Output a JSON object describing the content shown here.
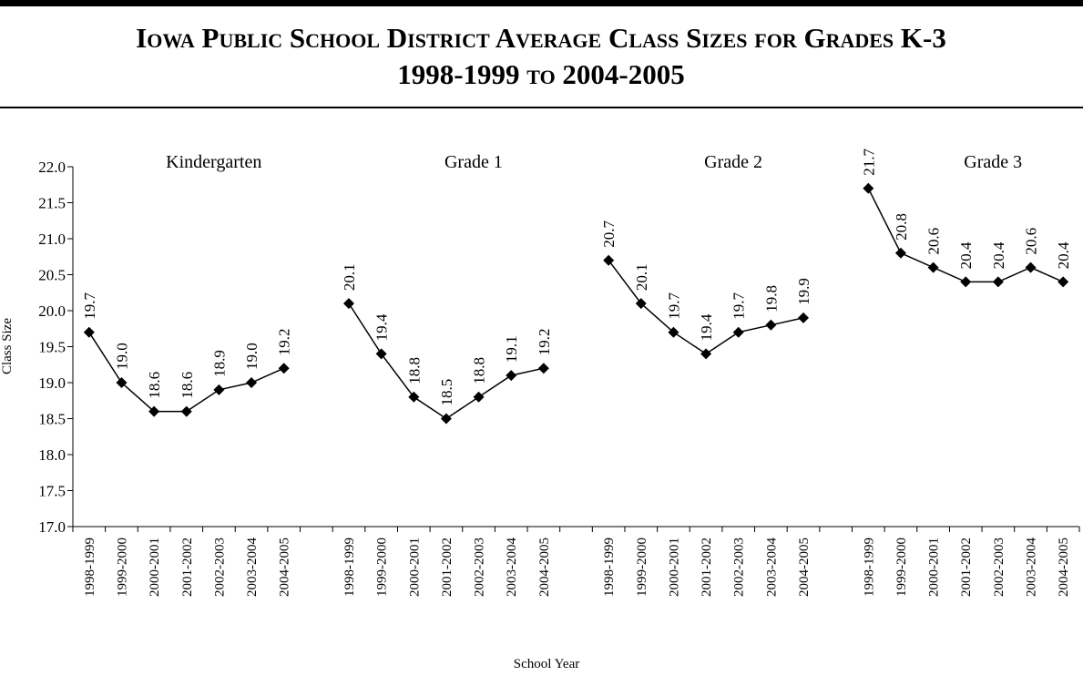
{
  "chart_data": {
    "type": "line",
    "title": "Iowa Public School District Average Class Sizes for Grades K-3",
    "subtitle": "1998-1999 to 2004-2005",
    "x_label": "School Year",
    "y_label": "Class Size",
    "categories": [
      "1998-1999",
      "1999-2000",
      "2000-2001",
      "2001-2002",
      "2002-2003",
      "2003-2004",
      "2004-2005",
      null,
      "1998-1999",
      "1999-2000",
      "2000-2001",
      "2001-2002",
      "2002-2003",
      "2003-2004",
      "2004-2005",
      null,
      "1998-1999",
      "1999-2000",
      "2000-2001",
      "2001-2002",
      "2002-2003",
      "2003-2004",
      "2004-2005",
      null,
      "1998-1999",
      "1999-2000",
      "2000-2001",
      "2001-2002",
      "2002-2003",
      "2003-2004",
      "2004-2005"
    ],
    "series": [
      {
        "name": "Kindergarten",
        "color": "#000000",
        "values": [
          19.7,
          19.0,
          18.6,
          18.6,
          18.9,
          19.0,
          19.2,
          null,
          null,
          null,
          null,
          null,
          null,
          null,
          null,
          null,
          null,
          null,
          null,
          null,
          null,
          null,
          null,
          null,
          null,
          null,
          null,
          null,
          null,
          null,
          null
        ],
        "value_labels": [
          "19.7",
          "19.0",
          "18.6",
          "18.6",
          "18.9",
          "19.0",
          "19.2",
          null,
          null,
          null,
          null,
          null,
          null,
          null,
          null,
          null,
          null,
          null,
          null,
          null,
          null,
          null,
          null,
          null,
          null,
          null,
          null,
          null,
          null,
          null,
          null
        ]
      },
      {
        "name": "Grade 1",
        "color": "#000000",
        "values": [
          null,
          null,
          null,
          null,
          null,
          null,
          null,
          null,
          20.1,
          19.4,
          18.8,
          18.5,
          18.8,
          19.1,
          19.2,
          null,
          null,
          null,
          null,
          null,
          null,
          null,
          null,
          null,
          null,
          null,
          null,
          null,
          null,
          null,
          null
        ],
        "value_labels": [
          null,
          null,
          null,
          null,
          null,
          null,
          null,
          null,
          "20.1",
          "19.4",
          "18.8",
          "18.5",
          "18.8",
          "19.1",
          "19.2",
          null,
          null,
          null,
          null,
          null,
          null,
          null,
          null,
          null,
          null,
          null,
          null,
          null,
          null,
          null,
          null
        ]
      },
      {
        "name": "Grade 2",
        "color": "#000000",
        "values": [
          null,
          null,
          null,
          null,
          null,
          null,
          null,
          null,
          null,
          null,
          null,
          null,
          null,
          null,
          null,
          null,
          20.7,
          20.1,
          19.7,
          19.4,
          19.7,
          19.8,
          19.9,
          null,
          null,
          null,
          null,
          null,
          null,
          null,
          null
        ],
        "value_labels": [
          null,
          null,
          null,
          null,
          null,
          null,
          null,
          null,
          null,
          null,
          null,
          null,
          null,
          null,
          null,
          null,
          "20.7",
          "20.1",
          "19.7",
          "19.4",
          "19.7",
          "19.8",
          "19.9",
          null,
          null,
          null,
          null,
          null,
          null,
          null,
          null
        ]
      },
      {
        "name": "Grade 3",
        "color": "#000000",
        "values": [
          null,
          null,
          null,
          null,
          null,
          null,
          null,
          null,
          null,
          null,
          null,
          null,
          null,
          null,
          null,
          null,
          null,
          null,
          null,
          null,
          null,
          null,
          null,
          null,
          21.7,
          20.8,
          20.6,
          20.4,
          20.4,
          20.6,
          20.4
        ],
        "value_labels": [
          null,
          null,
          null,
          null,
          null,
          null,
          null,
          null,
          null,
          null,
          null,
          null,
          null,
          null,
          null,
          null,
          null,
          null,
          null,
          null,
          null,
          null,
          null,
          null,
          "21.7",
          "20.8",
          "20.6",
          "20.4",
          "20.4",
          "20.6",
          "20.4"
        ]
      }
    ],
    "ylim": [
      17.0,
      22.0
    ],
    "yticks": [
      {
        "value": 17,
        "label": "17.0"
      },
      {
        "value": 17.5,
        "label": "17.5"
      },
      {
        "value": 18,
        "label": "18.0"
      },
      {
        "value": 18.5,
        "label": "18.5"
      },
      {
        "value": 19,
        "label": "19.0"
      },
      {
        "value": 19.5,
        "label": "19.5"
      },
      {
        "value": 20,
        "label": "20.0"
      },
      {
        "value": 20.5,
        "label": "20.5"
      },
      {
        "value": 21,
        "label": "21.0"
      },
      {
        "value": 21.5,
        "label": "21.5"
      },
      {
        "value": 22,
        "label": "22.0"
      }
    ],
    "grid": false
  }
}
